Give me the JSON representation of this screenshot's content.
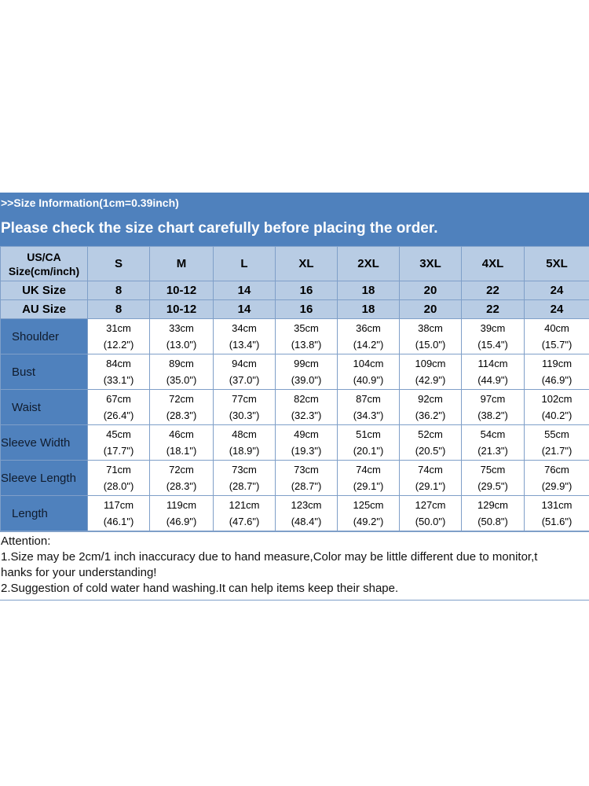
{
  "banner": {
    "info": ">>Size Information(1cm=0.39inch)",
    "notice": "Please check the size chart carefully before placing the order."
  },
  "table": {
    "header_label": [
      "US/CA",
      "Size(cm/inch)"
    ],
    "sizes": [
      "S",
      "M",
      "L",
      "XL",
      "2XL",
      "3XL",
      "4XL",
      "5XL"
    ],
    "uk_label": "UK Size",
    "uk": [
      "8",
      "10-12",
      "14",
      "16",
      "18",
      "20",
      "22",
      "24"
    ],
    "au_label": "AU Size",
    "au": [
      "8",
      "10-12",
      "14",
      "16",
      "18",
      "20",
      "22",
      "24"
    ],
    "rows": [
      {
        "label": "Shoulder",
        "cm": [
          "31cm",
          "33cm",
          "34cm",
          "35cm",
          "36cm",
          "38cm",
          "39cm",
          "40cm"
        ],
        "inch": [
          "(12.2\")",
          "(13.0\")",
          "(13.4\")",
          "(13.8\")",
          "(14.2\")",
          "(15.0\")",
          "(15.4\")",
          "(15.7\")"
        ]
      },
      {
        "label": "Bust",
        "cm": [
          "84cm",
          "89cm",
          "94cm",
          "99cm",
          "104cm",
          "109cm",
          "114cm",
          "119cm"
        ],
        "inch": [
          "(33.1\")",
          "(35.0\")",
          "(37.0\")",
          "(39.0\")",
          "(40.9\")",
          "(42.9\")",
          "(44.9\")",
          "(46.9\")"
        ]
      },
      {
        "label": "Waist",
        "cm": [
          "67cm",
          "72cm",
          "77cm",
          "82cm",
          "87cm",
          "92cm",
          "97cm",
          "102cm"
        ],
        "inch": [
          "(26.4\")",
          "(28.3\")",
          "(30.3\")",
          "(32.3\")",
          "(34.3\")",
          "(36.2\")",
          "(38.2\")",
          "(40.2\")"
        ]
      },
      {
        "label": "Sleeve Width",
        "cm": [
          "45cm",
          "46cm",
          "48cm",
          "49cm",
          "51cm",
          "52cm",
          "54cm",
          "55cm"
        ],
        "inch": [
          "(17.7\")",
          "(18.1\")",
          "(18.9\")",
          "(19.3\")",
          "(20.1\")",
          "(20.5\")",
          "(21.3\")",
          "(21.7\")"
        ]
      },
      {
        "label": "Sleeve Length",
        "cm": [
          "71cm",
          "72cm",
          "73cm",
          "73cm",
          "74cm",
          "74cm",
          "75cm",
          "76cm"
        ],
        "inch": [
          "(28.0\")",
          "(28.3\")",
          "(28.7\")",
          "(28.7\")",
          "(29.1\")",
          "(29.1\")",
          "(29.5\")",
          "(29.9\")"
        ]
      },
      {
        "label": "Length",
        "cm": [
          "117cm",
          "119cm",
          "121cm",
          "123cm",
          "125cm",
          "127cm",
          "129cm",
          "131cm"
        ],
        "inch": [
          "(46.1\")",
          "(46.9\")",
          "(47.6\")",
          "(48.4\")",
          "(49.2\")",
          "(50.0\")",
          "(50.8\")",
          "(51.6\")"
        ]
      }
    ]
  },
  "notes": {
    "heading": "Attention:",
    "line1": "1.Size may be 2cm/1 inch inaccuracy due to hand measure,Color may be little different due to monitor,t",
    "line1b": "hanks for your understanding!",
    "line2": "2.Suggestion of cold water hand washing.It can help items keep their shape."
  },
  "colors": {
    "banner": "#4f81bd",
    "header_cells": "#b8cce4",
    "label_cells": "#4f81bd",
    "borders": "#7f9fc8"
  }
}
